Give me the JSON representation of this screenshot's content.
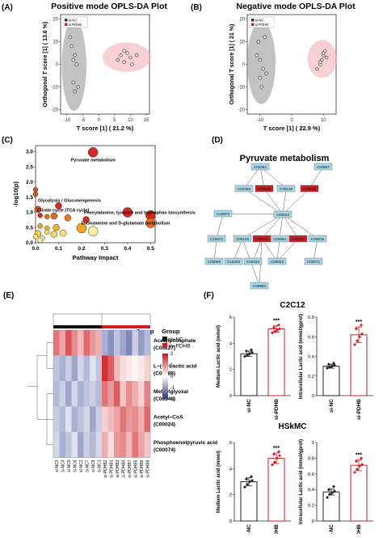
{
  "panels": {
    "A": {
      "letter": "(A)",
      "title": "Positive mode OPLS-DA Plot",
      "xlabel": "T score [1] ( 21.2 %)",
      "ylabel": "Orthogonal T score [1] ( 13.6 %)",
      "xticks": [
        "-10",
        "-5",
        "0",
        "5",
        "10",
        "15"
      ],
      "yticks": [
        "-20",
        "-10",
        "0",
        "10",
        "20"
      ],
      "legend": [
        "si-NC",
        "si-PDHB"
      ]
    },
    "B": {
      "letter": "(B)",
      "title": "Negative mode OPLS-DA Plot",
      "xlabel": "T score [1] ( 22.9 %)",
      "ylabel": "Orthogonal T score [1] ( 21 %)",
      "xticks": [
        "-10",
        "0",
        "10"
      ],
      "yticks": [
        "-20",
        "-10",
        "0",
        "10",
        "20"
      ],
      "legend": [
        "si-NC",
        "si-PDHB"
      ]
    },
    "C": {
      "letter": "(C)",
      "xlabel": "Pathway Impact",
      "ylabel": "-log10(p)",
      "xticks": [
        "0.0",
        "0.1",
        "0.2",
        "0.3",
        "0.4",
        "0.5"
      ],
      "yticks": [
        "0.0",
        "0.5",
        "1.0",
        "1.5",
        "2.0",
        "2.5",
        "3.0"
      ],
      "labels": [
        "Pyruvate metabolism",
        "Glycolysis / Gluconeogenesis",
        "Phenylalanine, tyrosine and tryptophan biosynthesis",
        "Citrate cycle (TCA cycle)",
        "D-Glutamine and D-glutamate metabolism"
      ]
    },
    "D": {
      "letter": "(D)",
      "title": "Pyruvate metabolism",
      "nodes": [
        "C03451",
        "C00937",
        "C00256",
        "C00186",
        "C00149",
        "C00546",
        "C15973",
        "C00022",
        "C15972",
        "C05125",
        "C00024",
        "C00084",
        "C00227",
        "C00074",
        "C00068",
        "C16255",
        "C00332",
        "C00033",
        "C00036",
        "C00071",
        "C05993"
      ]
    },
    "E": {
      "letter": "(E)",
      "group_label": "Group",
      "legend_title": "Group",
      "legend": [
        "si−NC",
        "si−PDHB"
      ],
      "scale_ticks": [
        "2",
        "1",
        "0",
        "-1",
        "-2"
      ],
      "rows": [
        "Acetylphosphate\n(C00227)",
        "L−(+)−Lactic acid\n(C00186)",
        "Methylglyoxal\n(C00546)",
        "Acetyl−CoA\n(C00024)",
        "Phosphoenolpyruvic acid\n(C00074)"
      ],
      "cols": [
        "si-NC3",
        "si-NC4",
        "si-NC5",
        "si-NC6",
        "si-NC2",
        "si-NC7",
        "si-NC8",
        "si-NC1",
        "si-PDHB2",
        "si-PDHB1",
        "si-PDHB3",
        "si-PDHB4",
        "si-PDHB7",
        "si-PDHB5",
        "si-PDHB6",
        "si-PDHB8"
      ]
    },
    "F": {
      "letter": "(F)",
      "title_top": "C2C12",
      "title_bottom": "HSkMC",
      "ylabel_med": "Medium Lactic acid (mmol)",
      "ylabel_intra": "Intracellular Lactic acid (mmol/gprot)",
      "categories": [
        "si-NC",
        "si-PDHB"
      ],
      "sig": "***"
    }
  },
  "chart_data": [
    {
      "type": "scatter",
      "panel": "A",
      "title": "Positive mode OPLS-DA Plot",
      "xlabel": "T score [1] ( 21.2 %)",
      "ylabel": "Orthogonal T score [1] ( 13.6 %)",
      "xlim": [
        -12,
        16
      ],
      "ylim": [
        -22,
        22
      ],
      "ellipses": true,
      "series": [
        {
          "name": "si-NC",
          "color": "#555555",
          "x": [
            -9,
            -8.5,
            -8,
            -7.5,
            -7,
            -8,
            -6.5,
            -7.5
          ],
          "y": [
            12,
            8,
            2,
            4,
            0,
            -8,
            -10,
            -12
          ]
        },
        {
          "name": "si-PDHB",
          "color": "#c0203a",
          "x": [
            6,
            7,
            8,
            9,
            10,
            10.5,
            12,
            8
          ],
          "y": [
            2,
            4,
            6,
            5,
            3,
            0,
            4,
            1
          ]
        }
      ]
    },
    {
      "type": "scatter",
      "panel": "B",
      "title": "Negative mode OPLS-DA Plot",
      "xlabel": "T score [1] ( 22.9 %)",
      "ylabel": "Orthogonal T score [1] ( 21 %)",
      "xlim": [
        -14,
        14
      ],
      "ylim": [
        -22,
        22
      ],
      "ellipses": true,
      "series": [
        {
          "name": "si-NC",
          "color": "#555555",
          "x": [
            -11,
            -10.5,
            -10,
            -9,
            -8,
            -10,
            -9.5,
            -8.5
          ],
          "y": [
            4,
            10,
            2,
            -2,
            -4,
            -6,
            -10,
            12
          ]
        },
        {
          "name": "si-PDHB",
          "color": "#c0203a",
          "x": [
            8,
            9,
            9.5,
            10,
            10.5,
            11,
            10,
            9
          ],
          "y": [
            -2,
            0,
            2,
            4,
            6,
            3,
            5,
            1
          ]
        }
      ]
    },
    {
      "type": "scatter",
      "panel": "C",
      "xlabel": "Pathway Impact",
      "ylabel": "-log10(p)",
      "xlim": [
        0,
        0.52
      ],
      "ylim": [
        0,
        3.2
      ],
      "points": [
        {
          "x": 0.25,
          "y": 2.98,
          "r": 6,
          "color": "#d7281f"
        },
        {
          "x": 0.0,
          "y": 1.75,
          "r": 3,
          "color": "#c85a1e"
        },
        {
          "x": 0.0,
          "y": 1.6,
          "r": 3,
          "color": "#c85a1e"
        },
        {
          "x": 0.1,
          "y": 1.22,
          "r": 4,
          "color": "#d7281f"
        },
        {
          "x": 0.4,
          "y": 1.0,
          "r": 6,
          "color": "#d7281f"
        },
        {
          "x": 0.01,
          "y": 1.1,
          "r": 4,
          "color": "#d94a1c"
        },
        {
          "x": 0.02,
          "y": 0.9,
          "r": 3,
          "color": "#d7281f"
        },
        {
          "x": 0.05,
          "y": 0.86,
          "r": 3,
          "color": "#e66b1a"
        },
        {
          "x": 0.08,
          "y": 0.88,
          "r": 4,
          "color": "#e06a1a"
        },
        {
          "x": 0.14,
          "y": 0.82,
          "r": 4,
          "color": "#e87a1e"
        },
        {
          "x": 0.22,
          "y": 0.76,
          "r": 4,
          "color": "#d7281f"
        },
        {
          "x": 0.5,
          "y": 0.9,
          "r": 6,
          "color": "#d7281f"
        },
        {
          "x": 0.5,
          "y": 0.65,
          "r": 6,
          "color": "#e86a1a"
        },
        {
          "x": 0.02,
          "y": 0.55,
          "r": 3,
          "color": "#f0a020"
        },
        {
          "x": 0.05,
          "y": 0.48,
          "r": 3,
          "color": "#f4b530"
        },
        {
          "x": 0.09,
          "y": 0.5,
          "r": 4,
          "color": "#f0b030"
        },
        {
          "x": 0.2,
          "y": 0.48,
          "r": 6,
          "color": "#f2a81e"
        },
        {
          "x": 0.01,
          "y": 0.3,
          "r": 4,
          "color": "#f6c94a"
        },
        {
          "x": 0.05,
          "y": 0.35,
          "r": 3,
          "color": "#f8d75a"
        },
        {
          "x": 0.0,
          "y": 0.2,
          "r": 3,
          "color": "#fbe06a"
        },
        {
          "x": 0.08,
          "y": 0.28,
          "r": 4,
          "color": "#f7d35a"
        },
        {
          "x": 0.12,
          "y": 0.32,
          "r": 4,
          "color": "#fae070"
        },
        {
          "x": 0.25,
          "y": 0.38,
          "r": 6,
          "color": "#fbef9a"
        },
        {
          "x": 0.03,
          "y": 0.15,
          "r": 3,
          "color": "#fbe996"
        },
        {
          "x": 0.02,
          "y": 0.08,
          "r": 3,
          "color": "#fff3b0"
        }
      ]
    },
    {
      "type": "heatmap",
      "panel": "E",
      "vmin": -2,
      "vmax": 2,
      "values": [
        [
          1.2,
          0.8,
          1.5,
          1.0,
          0.6,
          1.3,
          0.9,
          0.7,
          -0.8,
          -1.1,
          -0.6,
          -0.9,
          -1.2,
          -0.5,
          -1.0,
          -0.7
        ],
        [
          -0.6,
          -0.8,
          -0.5,
          -0.9,
          -0.4,
          -0.7,
          -0.3,
          -0.6,
          1.8,
          1.4,
          0.6,
          0.3,
          0.2,
          0.1,
          0.2,
          0.4
        ],
        [
          -0.7,
          -0.5,
          -0.9,
          -0.4,
          -0.8,
          -0.6,
          -0.5,
          -0.7,
          1.2,
          0.9,
          1.4,
          0.5,
          1.0,
          0.7,
          0.4,
          1.1
        ],
        [
          -0.5,
          -0.7,
          -0.3,
          -0.8,
          -0.6,
          -0.4,
          -0.9,
          -0.5,
          0.4,
          0.6,
          0.8,
          1.2,
          0.9,
          1.0,
          0.7,
          1.3
        ],
        [
          -0.4,
          -0.8,
          -0.6,
          -0.3,
          -0.9,
          -0.5,
          -0.7,
          -0.4,
          0.7,
          0.3,
          0.9,
          1.0,
          0.6,
          1.2,
          0.8,
          0.5
        ]
      ]
    },
    {
      "type": "bar",
      "panel": "F-C2C12-medium",
      "categories": [
        "si-NC",
        "si-PDHB"
      ],
      "values": [
        3.2,
        5.1
      ],
      "err": [
        0.2,
        0.25
      ],
      "ylim": [
        0,
        6
      ],
      "ylabel": "Medium Lactic acid (mmol)",
      "points": [
        [
          3.0,
          3.1,
          3.2,
          3.3,
          3.4,
          3.5
        ],
        [
          4.8,
          4.9,
          5.0,
          5.1,
          5.2,
          5.4
        ]
      ]
    },
    {
      "type": "bar",
      "panel": "F-C2C12-intra",
      "categories": [
        "si-NC",
        "si-PDHB"
      ],
      "values": [
        0.3,
        0.62
      ],
      "err": [
        0.02,
        0.08
      ],
      "ylim": [
        0,
        0.8
      ],
      "ylabel": "Intracellular Lactic acid (mmol/gprot)",
      "points": [
        [
          0.28,
          0.29,
          0.3,
          0.31,
          0.32,
          0.33
        ],
        [
          0.52,
          0.56,
          0.6,
          0.63,
          0.68,
          0.72
        ]
      ]
    },
    {
      "type": "bar",
      "panel": "F-HSkMC-medium",
      "categories": [
        "si-NC",
        "si-PDHB"
      ],
      "values": [
        3.0,
        4.8
      ],
      "err": [
        0.3,
        0.4
      ],
      "ylim": [
        0,
        6
      ],
      "ylabel": "Medium Lactic acid (mmol)",
      "points": [
        [
          2.6,
          2.8,
          3.0,
          3.1,
          3.2,
          3.4
        ],
        [
          4.3,
          4.5,
          4.8,
          5.0,
          5.1,
          5.3
        ]
      ]
    },
    {
      "type": "bar",
      "panel": "F-HSkMC-intra",
      "categories": [
        "si-NC",
        "si-PDHB"
      ],
      "values": [
        0.37,
        0.71
      ],
      "err": [
        0.04,
        0.07
      ],
      "ylim": [
        0,
        1.0
      ],
      "ylabel": "Intracellular Lactic acid (mmol/gprot)",
      "points": [
        [
          0.3,
          0.34,
          0.36,
          0.38,
          0.4,
          0.44
        ],
        [
          0.62,
          0.66,
          0.7,
          0.72,
          0.76,
          0.8
        ]
      ]
    }
  ]
}
